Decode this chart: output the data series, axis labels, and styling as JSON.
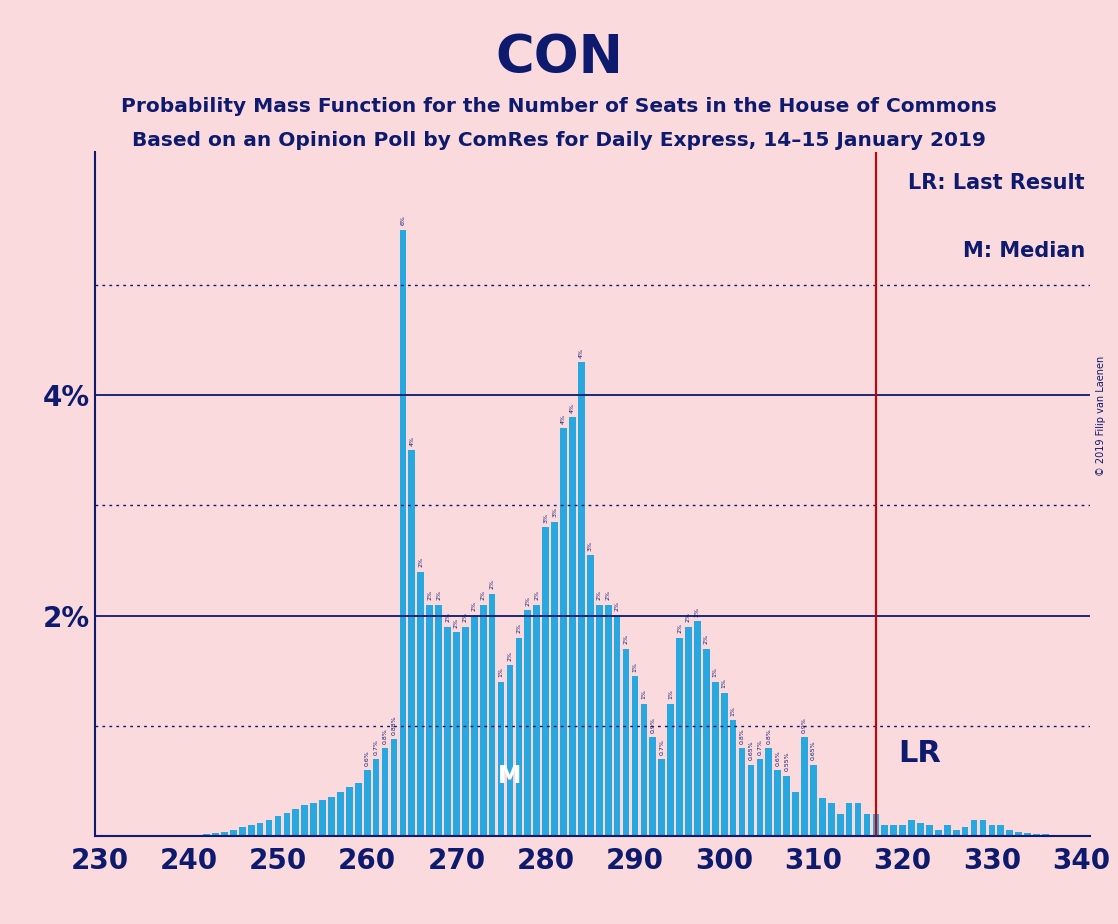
{
  "title": "CON",
  "subtitle1": "Probability Mass Function for the Number of Seats in the House of Commons",
  "subtitle2": "Based on an Opinion Poll by ComRes for Daily Express, 14–15 January 2019",
  "copyright": "© 2019 Filip van Laenen",
  "background_color": "#fadadd",
  "bar_color": "#29a8e0",
  "axis_color": "#0d1a6e",
  "grid_solid_color": "#0d1a6e",
  "grid_dot_color": "#0d1a6e",
  "title_color": "#0d1a6e",
  "lr_line_color": "#cc0000",
  "lr_value": 317,
  "median_value": 276,
  "xlim_min": 229.5,
  "xlim_max": 341,
  "ylim_min": 0,
  "ylim_max": 0.062,
  "yticks_solid": [
    0.02,
    0.04
  ],
  "yticks_dotted": [
    0.01,
    0.03,
    0.05
  ],
  "xticks": [
    230,
    240,
    250,
    260,
    270,
    280,
    290,
    300,
    310,
    320,
    330,
    340
  ],
  "seats": [
    229,
    230,
    231,
    232,
    233,
    234,
    235,
    236,
    237,
    238,
    239,
    240,
    241,
    242,
    243,
    244,
    245,
    246,
    247,
    248,
    249,
    250,
    251,
    252,
    253,
    254,
    255,
    256,
    257,
    258,
    259,
    260,
    261,
    262,
    263,
    264,
    265,
    266,
    267,
    268,
    269,
    270,
    271,
    272,
    273,
    274,
    275,
    276,
    277,
    278,
    279,
    280,
    281,
    282,
    283,
    284,
    285,
    286,
    287,
    288,
    289,
    290,
    291,
    292,
    293,
    294,
    295,
    296,
    297,
    298,
    299,
    300,
    301,
    302,
    303,
    304,
    305,
    306,
    307,
    308,
    309,
    310,
    311,
    312,
    313,
    314,
    315,
    316,
    317,
    318,
    319,
    320,
    321,
    322,
    323,
    324,
    325,
    326,
    327,
    328,
    329,
    330,
    331,
    332,
    333,
    334,
    335,
    336,
    337,
    338,
    339,
    340
  ],
  "pmf": [
    5e-05,
    5e-05,
    5e-05,
    5e-05,
    5e-05,
    5e-05,
    5e-05,
    5e-05,
    5e-05,
    5e-05,
    5e-05,
    0.0001,
    0.00015,
    0.0002,
    0.00025,
    0.00035,
    0.0006,
    0.0008,
    0.001,
    0.0012,
    0.0015,
    0.0018,
    0.0021,
    0.0025,
    0.0028,
    0.003,
    0.0033,
    0.0036,
    0.004,
    0.0045,
    0.0048,
    0.006,
    0.007,
    0.008,
    0.0088,
    0.055,
    0.035,
    0.024,
    0.021,
    0.021,
    0.019,
    0.0185,
    0.019,
    0.02,
    0.021,
    0.022,
    0.014,
    0.0155,
    0.018,
    0.0205,
    0.021,
    0.028,
    0.0285,
    0.037,
    0.038,
    0.043,
    0.0255,
    0.021,
    0.021,
    0.02,
    0.017,
    0.0145,
    0.012,
    0.009,
    0.007,
    0.012,
    0.018,
    0.019,
    0.0195,
    0.017,
    0.014,
    0.013,
    0.0105,
    0.008,
    0.0065,
    0.007,
    0.008,
    0.006,
    0.0055,
    0.004,
    0.009,
    0.0065,
    0.0035,
    0.003,
    0.002,
    0.003,
    0.003,
    0.002,
    0.002,
    0.001,
    0.001,
    0.001,
    0.0015,
    0.0012,
    0.001,
    0.0006,
    0.001,
    0.0006,
    0.0008,
    0.0015,
    0.0015,
    0.001,
    0.001,
    0.0006,
    0.0004,
    0.0003,
    0.0002,
    0.0002,
    0.00015,
    0.0001,
    0.0001,
    5e-05
  ]
}
